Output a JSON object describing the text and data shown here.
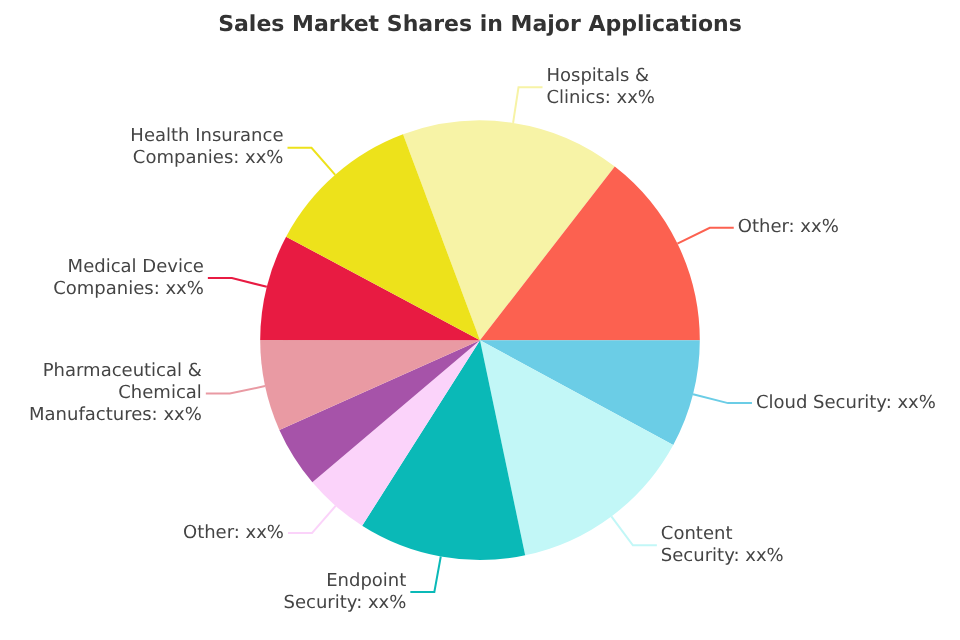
{
  "chart_data": {
    "type": "pie",
    "title": "Sales Market Shares in Major Applications",
    "categories": [
      "Hospitals & Clinics",
      "Other",
      "Cloud Security",
      "Content Security",
      "Endpoint Security",
      "Other",
      null,
      "Pharmaceutical & Chemical Manufactures",
      "Medical Device Companies",
      "Health Insurance Companies"
    ],
    "values": [
      16.2,
      14.5,
      7.9,
      13.8,
      12.3,
      4.8,
      4.5,
      6.7,
      7.8,
      11.5
    ],
    "colors": [
      "#f7f3a6",
      "#fc6150",
      "#6bcde6",
      "#c2f7f7",
      "#0ab9b7",
      "#fbd3fa",
      "#a653a9",
      "#e99aa3",
      "#e81b42",
      "#ede21b"
    ],
    "value_labels": [
      "xx%",
      "xx%",
      "xx%",
      "xx%",
      "xx%",
      "xx%",
      null,
      "xx%",
      "xx%",
      "xx%"
    ]
  }
}
